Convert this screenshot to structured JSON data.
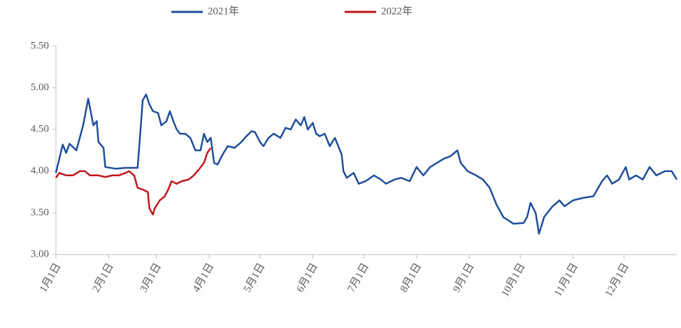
{
  "chart_data": {
    "type": "line",
    "series": [
      {
        "name": "2021年",
        "color": "#1f4e9a",
        "x": [
          0,
          4,
          6,
          8,
          12,
          14,
          16,
          19,
          22,
          24,
          25,
          28,
          29,
          35,
          41,
          48,
          49,
          51,
          53,
          55,
          57,
          60,
          62,
          65,
          67,
          69,
          71,
          73,
          76,
          79,
          82,
          85,
          87,
          89,
          91,
          93,
          95,
          98,
          101,
          105,
          109,
          112,
          115,
          117,
          120,
          122,
          125,
          128,
          132,
          135,
          138,
          141,
          144,
          146,
          148,
          151,
          153,
          155,
          158,
          161,
          164,
          168,
          169,
          171,
          175,
          178,
          182,
          187,
          191,
          194,
          199,
          203,
          208,
          212,
          216,
          220,
          224,
          228,
          232,
          236,
          238,
          242,
          247,
          251,
          255,
          259,
          263,
          269,
          275,
          277,
          279,
          282,
          284,
          287,
          292,
          296,
          299,
          304,
          310,
          316,
          321,
          324,
          327,
          331,
          335,
          337,
          341,
          345,
          349,
          353,
          358,
          362,
          365
        ],
        "values": [
          3.98,
          4.32,
          4.22,
          4.33,
          4.25,
          4.4,
          4.55,
          4.87,
          4.55,
          4.6,
          4.35,
          4.28,
          4.05,
          4.03,
          4.04,
          4.04,
          4.3,
          4.85,
          4.92,
          4.8,
          4.72,
          4.7,
          4.55,
          4.6,
          4.72,
          4.6,
          4.5,
          4.45,
          4.45,
          4.4,
          4.25,
          4.25,
          4.45,
          4.35,
          4.4,
          4.1,
          4.08,
          4.2,
          4.3,
          4.28,
          4.35,
          4.42,
          4.48,
          4.47,
          4.35,
          4.3,
          4.4,
          4.45,
          4.4,
          4.52,
          4.5,
          4.62,
          4.55,
          4.65,
          4.5,
          4.58,
          4.45,
          4.42,
          4.45,
          4.3,
          4.4,
          4.2,
          4.0,
          3.92,
          3.98,
          3.85,
          3.88,
          3.95,
          3.9,
          3.85,
          3.9,
          3.92,
          3.88,
          4.05,
          3.95,
          4.05,
          4.1,
          4.15,
          4.18,
          4.25,
          4.1,
          4.0,
          3.95,
          3.9,
          3.8,
          3.6,
          3.45,
          3.37,
          3.38,
          3.45,
          3.62,
          3.5,
          3.25,
          3.45,
          3.58,
          3.65,
          3.58,
          3.65,
          3.68,
          3.7,
          3.88,
          3.95,
          3.85,
          3.9,
          4.05,
          3.9,
          3.95,
          3.9,
          4.05,
          3.95,
          4.0,
          4.0,
          3.9
        ]
      },
      {
        "name": "2022年",
        "color": "#c0161c",
        "x": [
          0,
          2,
          6,
          10,
          14,
          17,
          20,
          25,
          29,
          33,
          37,
          41,
          43,
          46,
          48,
          51,
          54,
          55,
          57,
          58,
          61,
          64,
          66,
          68,
          71,
          74,
          78,
          81,
          84,
          87,
          89,
          91
        ],
        "values": [
          3.92,
          3.98,
          3.95,
          3.95,
          4.0,
          4.0,
          3.95,
          3.95,
          3.93,
          3.95,
          3.95,
          3.98,
          4.0,
          3.95,
          3.8,
          3.78,
          3.75,
          3.55,
          3.48,
          3.55,
          3.65,
          3.7,
          3.78,
          3.88,
          3.85,
          3.88,
          3.9,
          3.95,
          4.02,
          4.1,
          4.22,
          4.28
        ]
      }
    ],
    "xlim": [
      0,
      365
    ],
    "xticks": [
      {
        "value": 0,
        "label": "1月1日"
      },
      {
        "value": 31,
        "label": "2月1日"
      },
      {
        "value": 59,
        "label": "3月1日"
      },
      {
        "value": 90,
        "label": "4月1日"
      },
      {
        "value": 120,
        "label": "5月1日"
      },
      {
        "value": 151,
        "label": "6月1日"
      },
      {
        "value": 181,
        "label": "7月1日"
      },
      {
        "value": 212,
        "label": "8月1日"
      },
      {
        "value": 243,
        "label": "9月1日"
      },
      {
        "value": 273,
        "label": "10月1日"
      },
      {
        "value": 304,
        "label": "11月1日"
      },
      {
        "value": 334,
        "label": "12月1日"
      }
    ],
    "ylim": [
      3,
      5.5
    ],
    "yticks": [
      {
        "value": 3,
        "label": "3.00"
      },
      {
        "value": 3.5,
        "label": "3.50"
      },
      {
        "value": 4,
        "label": "4.00"
      },
      {
        "value": 4.5,
        "label": "4.50"
      },
      {
        "value": 5,
        "label": "5.00"
      },
      {
        "value": 5.5,
        "label": "5.50"
      }
    ],
    "legend": "top"
  }
}
